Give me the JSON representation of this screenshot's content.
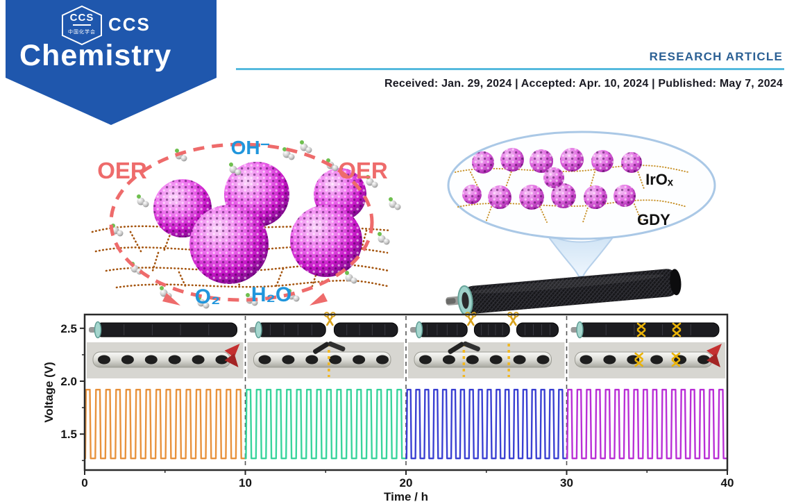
{
  "header": {
    "logo": {
      "hex_acronym": "CCS",
      "hex_society": "中国化学会",
      "acronym": "CCS",
      "journal_name": "Chemistry",
      "brand_blue": "#1f57ad"
    },
    "article_type": "RESEARCH ARTICLE",
    "rule_color": "#56bade",
    "dates_line": "Received: Jan. 29, 2024 | Accepted: Apr. 10, 2024 | Published: May 7, 2024"
  },
  "mechanism": {
    "oh_label": "OH⁻",
    "oer_left": "OER",
    "oer_right": "OER",
    "o2_label": "O₂",
    "h2o_label": "H₂O",
    "colors": {
      "oer_dashed_ring": "#ee6b6b",
      "species_blue": "#2196dc",
      "nanoparticle_magenta": "#c716c7",
      "gdy_network_brown": "#a4540e"
    }
  },
  "inset": {
    "irox_label": "IrOₓ",
    "gdy_label": "GDY"
  },
  "chart_data": {
    "type": "line",
    "title": "",
    "xlabel": "Time / h",
    "ylabel": "Voltage (V)",
    "xlim": [
      0,
      40
    ],
    "ylim": [
      1.16,
      2.63
    ],
    "xticks": [
      0,
      10,
      20,
      30,
      40
    ],
    "xticks_minor": [
      5,
      15,
      25,
      35
    ],
    "yticks": [
      1.5,
      2.0,
      2.5
    ],
    "yticks_minor": [
      1.25,
      1.75,
      2.25
    ],
    "separators": [
      10,
      20,
      30
    ],
    "grid": false,
    "legend": false,
    "waveform": "rounded-square charge/discharge cycling",
    "series": [
      {
        "state": "pristine",
        "inset": "intact fiber render + device photo with red clip",
        "color": "#e8923c",
        "t_start": 0,
        "t_end": 10,
        "cycles": 16,
        "v_low": 1.27,
        "v_high": 1.92
      },
      {
        "state": "cut-once",
        "inset": "fiber cut once, one scissors, photo with dotted cut line",
        "color": "#38d49c",
        "t_start": 10,
        "t_end": 20,
        "cycles": 16,
        "v_low": 1.27,
        "v_high": 1.92
      },
      {
        "state": "cut-twice",
        "inset": "fiber cut twice, two scissors, photo with two dotted lines",
        "color": "#3a40d2",
        "t_start": 20,
        "t_end": 30,
        "cycles": 18,
        "v_low": 1.27,
        "v_high": 1.92
      },
      {
        "state": "stitched",
        "inset": "rejoined fiber with two gold X stitches, photo with red clip",
        "color": "#b92fd6",
        "t_start": 30,
        "t_end": 40,
        "cycles": 17,
        "v_low": 1.27,
        "v_high": 1.92
      }
    ]
  }
}
